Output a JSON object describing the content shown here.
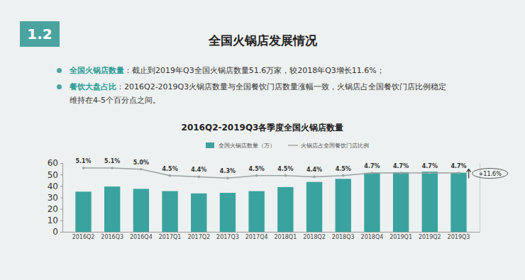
{
  "page": {
    "section": "1.2",
    "title": "全国火锅店发展情况",
    "bullets": [
      {
        "label": "全国火锅店数量",
        "text": "：截止到2019年Q3全国火锅店数量51.6万家，较2018年Q3增长11.6%；"
      },
      {
        "label": "餐饮大盘占比",
        "text": "：2016Q2-2019Q3火锅店数量与全国餐饮门店数量涨幅一致，火锅店占全国餐饮门店比例稳定维持在4-5个百分点之间。"
      }
    ]
  },
  "chart_data": {
    "type": "bar",
    "title": "2016Q2-2019Q3各季度全国火锅店数量",
    "categories": [
      "2016Q2",
      "2016Q3",
      "2016Q4",
      "2017Q1",
      "2017Q2",
      "2017Q3",
      "2017Q4",
      "2018Q1",
      "2018Q2",
      "2018Q3",
      "2018Q4",
      "2019Q1",
      "2019Q2",
      "2019Q3"
    ],
    "series": [
      {
        "name": "全国火锅店数量（万）",
        "type": "bar",
        "color": "#3aa39f",
        "values": [
          35,
          39.5,
          37.5,
          35.5,
          33.5,
          34,
          35.5,
          39,
          43.5,
          46.2,
          51.5,
          52,
          52.5,
          51.6
        ]
      },
      {
        "name": "火锅店占全国餐饮门店比例",
        "type": "line",
        "axis": "y2",
        "color": "#9aa3a3",
        "data_labels": true,
        "values": [
          5.1,
          5.1,
          5.0,
          4.5,
          4.4,
          4.3,
          4.5,
          4.5,
          4.4,
          4.5,
          4.7,
          4.7,
          4.7,
          4.7
        ],
        "value_labels": [
          "5.1%",
          "5.1%",
          "5.0%",
          "4.5%",
          "4.4%",
          "4.3%",
          "4.5%",
          "4.5%",
          "4.4%",
          "4.5%",
          "4.7%",
          "4.7%",
          "4.7%",
          "4.7%"
        ]
      }
    ],
    "annotations": [
      {
        "text": "+11.6%"
      }
    ],
    "ylim": [
      0,
      60
    ],
    "yticks": [
      0,
      10,
      20,
      30,
      40,
      50,
      60
    ],
    "y2lim": [
      0,
      5.5
    ],
    "y2ticks": [],
    "tick_labels": "y",
    "grid": false,
    "legend": "top"
  }
}
